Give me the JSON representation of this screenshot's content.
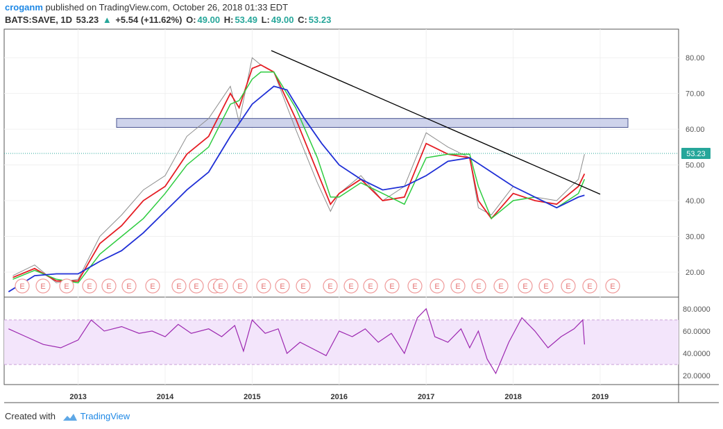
{
  "header": {
    "user": "croganm",
    "published_text": "published on TradingView.com, October 26, 2018 01:33 EDT",
    "symbol": "BATS:SAVE, 1D",
    "last": "53.23",
    "change": "+5.54 (+11.62%)",
    "open_label": "O:",
    "open": "49.00",
    "high_label": "H:",
    "high": "53.49",
    "low_label": "L:",
    "low": "49.00",
    "close_label": "C:",
    "close": "53.23"
  },
  "footer": {
    "created_with": "Created with",
    "brand": "TradingView"
  },
  "colors": {
    "price": "#8c8c8c",
    "ema_fast": "#e51c23",
    "ema_mid": "#2ecc40",
    "ema_slow": "#1f2fd6",
    "rsi": "#9c27b0",
    "zone": "#c5cbe8",
    "trend": "#000000",
    "last_badge": "#26a69a"
  },
  "chart_data": {
    "type": "line",
    "title": "BATS:SAVE, 1D",
    "x_ticks": [
      "2013",
      "2014",
      "2015",
      "2016",
      "2017",
      "2018",
      "2019"
    ],
    "y_ticks": [
      "20.00",
      "30.00",
      "40.00",
      "50.00",
      "60.00",
      "70.00",
      "80.00"
    ],
    "ylim": [
      13,
      88
    ],
    "last_price_label": "53.23",
    "series": [
      {
        "x": [
          2012.25,
          2012.5,
          2012.75,
          2013.0,
          2013.25,
          2013.5,
          2013.75,
          2014.0,
          2014.25,
          2014.5,
          2014.75,
          2014.85,
          2015.0,
          2015.1,
          2015.25,
          2015.5,
          2015.75,
          2015.9,
          2016.0,
          2016.25,
          2016.5,
          2016.75,
          2017.0,
          2017.25,
          2017.5,
          2017.6,
          2017.75,
          2018.0,
          2018.25,
          2018.5,
          2018.75,
          2018.82
        ],
        "values": [
          19,
          22,
          17,
          18,
          30,
          36,
          43,
          47,
          58,
          63,
          72,
          62,
          80,
          78,
          76,
          60,
          45,
          37,
          42,
          47,
          40,
          44,
          59,
          55,
          52,
          38,
          36,
          44,
          41,
          40,
          46,
          53
        ]
      },
      {
        "x": [
          2012.25,
          2012.5,
          2012.75,
          2013.0,
          2013.25,
          2013.5,
          2013.75,
          2014.0,
          2014.25,
          2014.5,
          2014.75,
          2014.85,
          2015.0,
          2015.1,
          2015.25,
          2015.5,
          2015.75,
          2015.9,
          2016.0,
          2016.25,
          2016.5,
          2016.75,
          2017.0,
          2017.25,
          2017.5,
          2017.6,
          2017.75,
          2018.0,
          2018.25,
          2018.5,
          2018.75,
          2018.82
        ],
        "values": [
          18.5,
          21,
          17.5,
          17.5,
          28,
          33,
          40,
          44,
          53,
          58,
          70,
          66,
          77,
          78,
          76,
          63,
          48,
          39,
          42,
          46,
          40,
          41,
          56,
          53,
          52,
          40,
          35,
          42,
          40,
          39,
          44,
          47.5
        ]
      },
      {
        "x": [
          2012.25,
          2012.5,
          2012.75,
          2013.0,
          2013.25,
          2013.5,
          2013.75,
          2014.0,
          2014.25,
          2014.5,
          2014.75,
          2014.85,
          2015.0,
          2015.1,
          2015.25,
          2015.5,
          2015.75,
          2015.9,
          2016.0,
          2016.25,
          2016.5,
          2016.75,
          2017.0,
          2017.25,
          2017.5,
          2017.6,
          2017.75,
          2018.0,
          2018.25,
          2018.5,
          2018.75,
          2018.82
        ],
        "values": [
          18,
          20.5,
          18,
          17,
          25,
          30,
          35,
          42,
          50,
          55,
          67,
          68,
          74,
          76,
          76,
          66,
          52,
          41,
          41,
          45,
          42,
          39,
          52,
          53,
          53,
          44,
          35,
          40,
          41,
          38,
          42,
          46
        ]
      },
      {
        "x": [
          2012.2,
          2012.5,
          2012.75,
          2013.0,
          2013.25,
          2013.5,
          2013.75,
          2014.0,
          2014.25,
          2014.5,
          2014.75,
          2015.0,
          2015.25,
          2015.4,
          2015.6,
          2015.8,
          2016.0,
          2016.25,
          2016.5,
          2016.75,
          2017.0,
          2017.25,
          2017.5,
          2017.75,
          2018.0,
          2018.25,
          2018.5,
          2018.75,
          2018.82
        ],
        "values": [
          14.5,
          19,
          19.5,
          19.5,
          23,
          26,
          31,
          37,
          43,
          48,
          58,
          67,
          72,
          71,
          63,
          56,
          50,
          46,
          43,
          44,
          47,
          51,
          52,
          48,
          44,
          41,
          38,
          41,
          41.5
        ]
      }
    ],
    "rsi": {
      "y_ticks": [
        "20.0000",
        "40.0000",
        "60.0000",
        "80.0000"
      ],
      "ylim": [
        12,
        88
      ],
      "band": [
        30,
        70
      ],
      "x": [
        2012.2,
        2012.4,
        2012.6,
        2012.8,
        2013.0,
        2013.15,
        2013.3,
        2013.5,
        2013.7,
        2013.85,
        2014.0,
        2014.15,
        2014.3,
        2014.5,
        2014.65,
        2014.8,
        2014.9,
        2015.0,
        2015.15,
        2015.3,
        2015.4,
        2015.55,
        2015.7,
        2015.85,
        2016.0,
        2016.15,
        2016.3,
        2016.45,
        2016.6,
        2016.75,
        2016.9,
        2017.0,
        2017.1,
        2017.25,
        2017.4,
        2017.5,
        2017.6,
        2017.7,
        2017.8,
        2017.95,
        2018.1,
        2018.25,
        2018.4,
        2018.55,
        2018.7,
        2018.8,
        2018.82
      ],
      "values": [
        62,
        55,
        48,
        45,
        52,
        70,
        60,
        64,
        58,
        60,
        55,
        66,
        58,
        62,
        55,
        65,
        42,
        70,
        58,
        62,
        40,
        50,
        44,
        38,
        60,
        55,
        62,
        50,
        58,
        40,
        72,
        80,
        55,
        50,
        62,
        45,
        60,
        35,
        22,
        50,
        72,
        60,
        45,
        55,
        62,
        70,
        48
      ]
    }
  }
}
